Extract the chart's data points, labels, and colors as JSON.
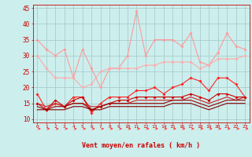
{
  "background_color": "#cceeed",
  "grid_color": "#aacccc",
  "xlabel": "Vent moyen/en rafales ( km/h )",
  "x": [
    0,
    1,
    2,
    3,
    4,
    5,
    6,
    7,
    8,
    9,
    10,
    11,
    12,
    13,
    14,
    15,
    16,
    17,
    18,
    19,
    20,
    21,
    22,
    23
  ],
  "series": [
    {
      "name": "rafales_max",
      "color": "#ff9999",
      "alpha": 1.0,
      "linewidth": 0.8,
      "marker": "D",
      "markersize": 2.0,
      "values": [
        35,
        32,
        30,
        32,
        23,
        32,
        26,
        20,
        26,
        26,
        30,
        44,
        30,
        35,
        35,
        35,
        33,
        37,
        28,
        27,
        31,
        37,
        33,
        32
      ]
    },
    {
      "name": "rafales_moy",
      "color": "#ffaaaa",
      "alpha": 1.0,
      "linewidth": 0.8,
      "marker": "D",
      "markersize": 2.0,
      "values": [
        30,
        26,
        23,
        23,
        23,
        20,
        21,
        25,
        26,
        26,
        26,
        26,
        27,
        27,
        28,
        28,
        28,
        28,
        26,
        27,
        29,
        29,
        29,
        30
      ]
    },
    {
      "name": "vent_max",
      "color": "#ff2222",
      "alpha": 1.0,
      "linewidth": 0.8,
      "marker": "D",
      "markersize": 2.0,
      "values": [
        18,
        13,
        15,
        14,
        17,
        17,
        12,
        15,
        17,
        17,
        17,
        19,
        19,
        20,
        18,
        20,
        21,
        23,
        22,
        19,
        23,
        23,
        21,
        17
      ]
    },
    {
      "name": "vent_moy_marker",
      "color": "#cc0000",
      "alpha": 1.0,
      "linewidth": 0.8,
      "marker": "D",
      "markersize": 2.0,
      "values": [
        15,
        13,
        16,
        14,
        16,
        17,
        13,
        14,
        15,
        16,
        16,
        17,
        17,
        17,
        17,
        17,
        17,
        18,
        17,
        16,
        18,
        18,
        17,
        17
      ]
    },
    {
      "name": "vent_moy2",
      "color": "#cc2222",
      "alpha": 1.0,
      "linewidth": 0.8,
      "marker": null,
      "markersize": 0,
      "values": [
        15,
        14,
        15,
        14,
        15,
        15,
        14,
        14,
        15,
        15,
        15,
        16,
        16,
        16,
        16,
        16,
        16,
        17,
        16,
        15,
        16,
        17,
        16,
        17
      ]
    },
    {
      "name": "vent_moy3",
      "color": "#990000",
      "alpha": 1.0,
      "linewidth": 0.8,
      "marker": null,
      "markersize": 0,
      "values": [
        14,
        13,
        14,
        14,
        15,
        15,
        13,
        14,
        15,
        15,
        15,
        15,
        15,
        15,
        15,
        16,
        16,
        16,
        15,
        14,
        15,
        16,
        16,
        16
      ]
    },
    {
      "name": "vent_min",
      "color": "#880000",
      "alpha": 1.0,
      "linewidth": 0.8,
      "marker": null,
      "markersize": 0,
      "values": [
        13,
        13,
        13,
        13,
        14,
        14,
        13,
        13,
        14,
        14,
        14,
        14,
        14,
        14,
        14,
        15,
        15,
        15,
        14,
        13,
        14,
        15,
        15,
        15
      ]
    }
  ],
  "ylim": [
    9,
    46
  ],
  "yticks": [
    10,
    15,
    20,
    25,
    30,
    35,
    40,
    45
  ],
  "xlim": [
    -0.5,
    23.5
  ]
}
